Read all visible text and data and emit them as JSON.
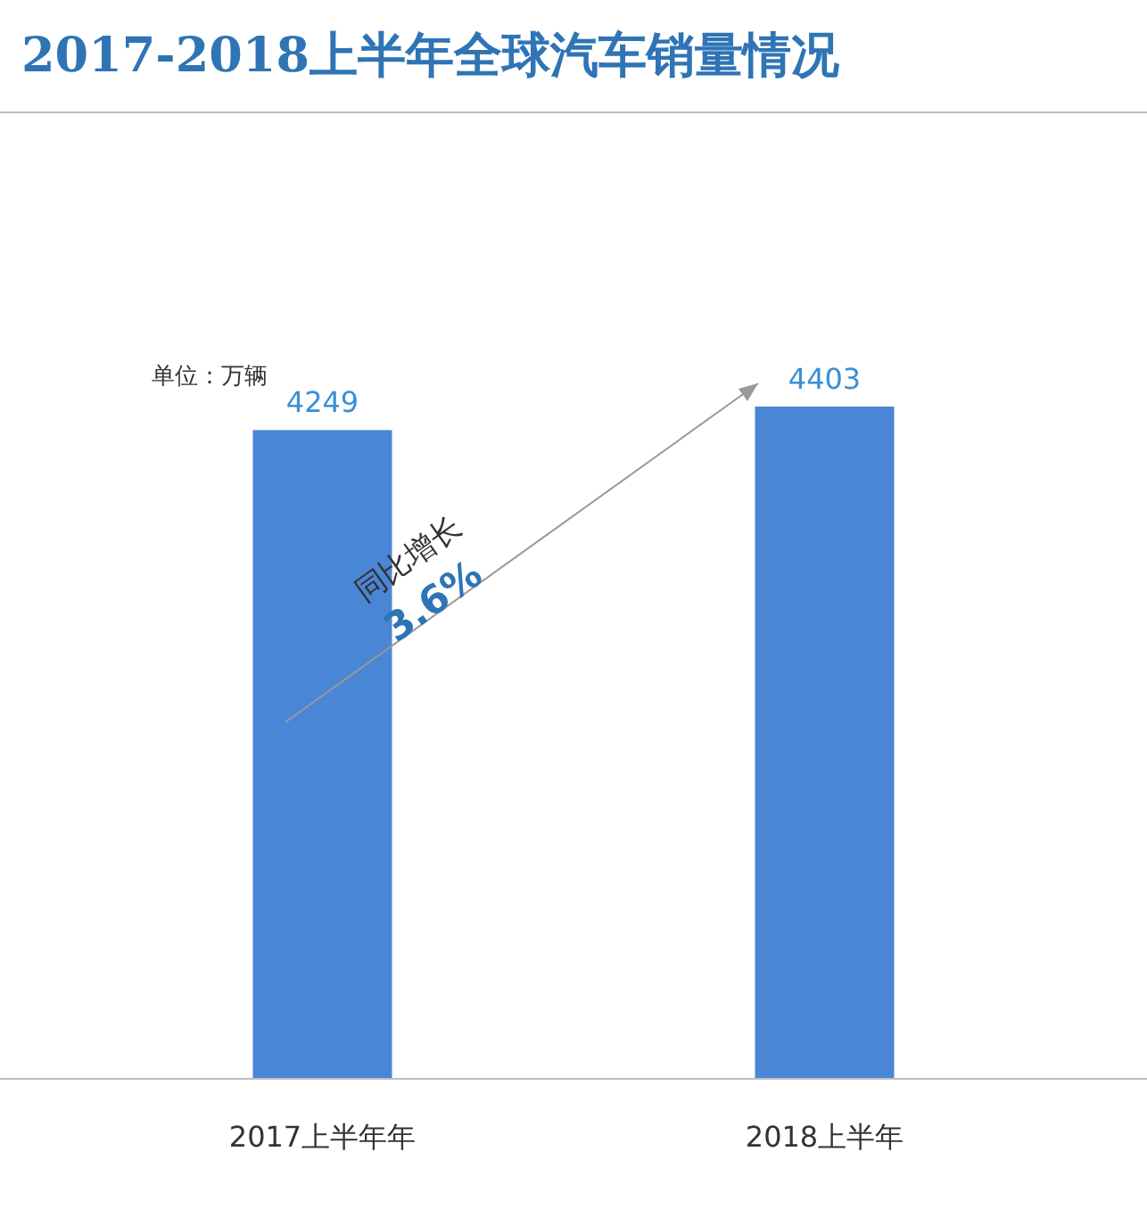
{
  "chart_data": {
    "type": "bar",
    "title": "2017-2018上半年全球汽车销量情况",
    "categories": [
      "2017上半年年",
      "2018上半年"
    ],
    "values": [
      4249,
      4403
    ],
    "color": "#4a86d6",
    "data_labels": true,
    "annotations": [
      "单位：万辆",
      "同比增长",
      "3.6%"
    ]
  }
}
